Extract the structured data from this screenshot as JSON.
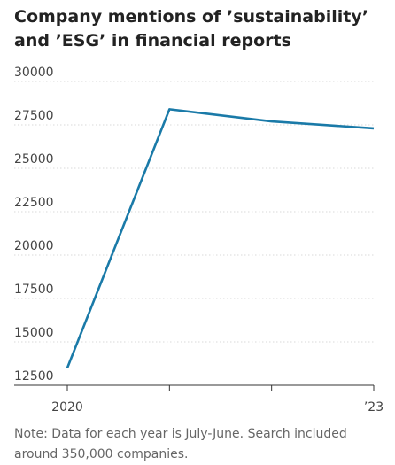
{
  "title": "Company mentions of ’sustainability’ and ’ESG’ in financial reports",
  "note": "Note: Data for each year is July-June. Search included around 350,000 companies.",
  "chart_data": {
    "type": "line",
    "title": "Company mentions of ’sustainability’ and ’ESG’ in financial reports",
    "xlabel": "",
    "ylabel": "",
    "x": [
      2020,
      2021,
      2022,
      2023
    ],
    "x_tick_labels": [
      "2020",
      "",
      "",
      "’23"
    ],
    "y_ticks": [
      12500,
      15000,
      17500,
      20000,
      22500,
      25000,
      27500,
      30000
    ],
    "y_tick_labels": [
      "12500",
      "15000",
      "17500",
      "20000",
      "22500",
      "25000",
      "27500",
      "30000"
    ],
    "ylim": [
      12500,
      30000
    ],
    "grid": true,
    "series": [
      {
        "values": [
          13500,
          28400,
          27700,
          27300
        ],
        "color": "#1a7aa8"
      }
    ]
  }
}
